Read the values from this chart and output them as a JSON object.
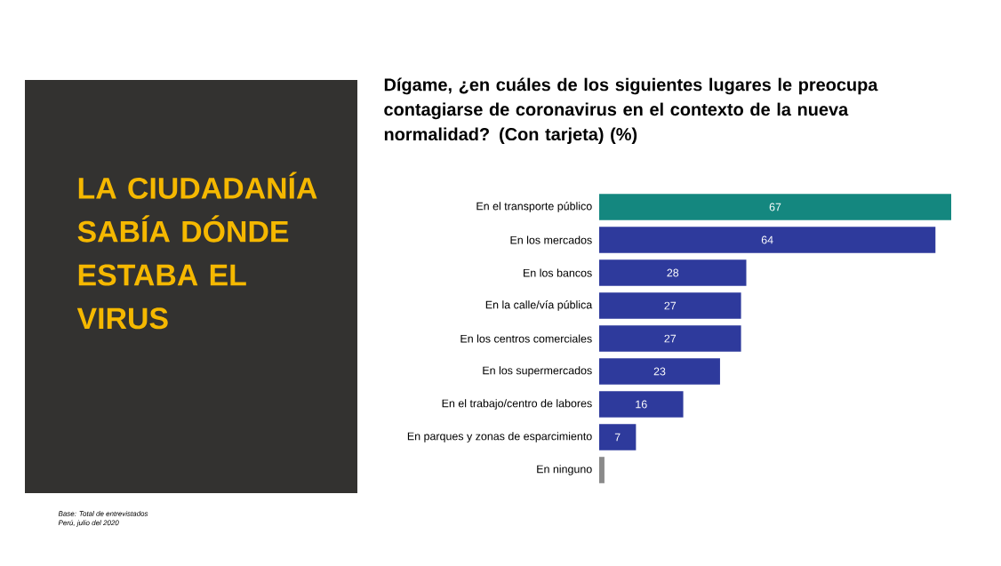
{
  "chart_data": {
    "type": "bar",
    "orientation": "horizontal",
    "title": "Dígame, ¿en cuáles de los siguientes lugares le preocupa contagiarse de coronavirus en el contexto de la nueva normalidad? (Con tarjeta) (%)",
    "categories": [
      "En el transporte público",
      "En los mercados",
      "En los bancos",
      "En la calle/vía pública",
      "En los centros comerciales",
      "En los supermercados",
      "En el trabajo/centro de labores",
      "En parques y zonas de esparcimiento",
      "En ninguno"
    ],
    "values": [
      67,
      64,
      28,
      27,
      27,
      23,
      16,
      7,
      1
    ],
    "colors": [
      "#14877f",
      "#2e3a9c",
      "#2e3a9c",
      "#2e3a9c",
      "#2e3a9c",
      "#2e3a9c",
      "#2e3a9c",
      "#2e3a9c",
      "#8a8a8a"
    ],
    "value_labels": [
      "67",
      "64",
      "28",
      "27",
      "27",
      "23",
      "16",
      "7",
      null
    ],
    "annotations": [
      "LA CIUDADANÍA SABÍA DÓNDE ESTABA EL VIRUS",
      "Base: Total de entrevistados",
      "Perú, julio del 2020"
    ]
  }
}
